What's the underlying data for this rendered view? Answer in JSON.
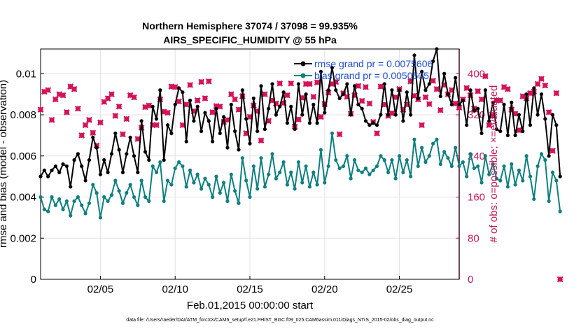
{
  "chart_data": {
    "type": "line",
    "title": "Northern Hemisphere 37074 / 37098 = 99.935%",
    "subtitle": "AIRS_SPECIFIC_HUMIDITY @ 55 hPa",
    "xlabel": "Feb.01,2015 00:00:00 start",
    "ylabel_left": "rmse and bias (model - observation)",
    "ylabel_right": "# of obs: o=possible; ×=evaluated",
    "xlim": [
      1,
      29
    ],
    "ylim_left": [
      0,
      0.0112
    ],
    "ylim_right": [
      0,
      448
    ],
    "x_ticks": [
      5,
      10,
      15,
      20,
      25
    ],
    "x_tick_labels": [
      "02/05",
      "02/10",
      "02/15",
      "02/20",
      "02/25"
    ],
    "y_left_ticks": [
      0,
      0.002,
      0.004,
      0.006,
      0.008,
      0.01
    ],
    "y_left_tick_labels": [
      "0",
      "0.002",
      "0.004",
      "0.006",
      "0.008",
      "0.01"
    ],
    "y_right_ticks": [
      0,
      80,
      160,
      240,
      320,
      400
    ],
    "y_right_tick_labels": [
      "0",
      "80",
      "160",
      "240",
      "320",
      "400"
    ],
    "grid": true,
    "legend_position": "top-right",
    "footer": "data file: /Users/raeder/DAI/ATM_forcXX/CAM6_setup/f.e21.FHIST_BGC.f09_025.CAM6assim.011/Diags_NTrS_2015-02/obs_diag_output.nc",
    "colors": {
      "rmse": "#000000",
      "bias": "#0f7f7f",
      "obs": "#d4145a",
      "right_axis": "#c2185b",
      "legend_text": "#1f4fcc"
    },
    "x_start": 1.0,
    "x_step": 0.25,
    "series": [
      {
        "name": "rmse grand pr = 0.0075606",
        "axis": "left",
        "color": "#000000",
        "values": [
          0.005,
          0.0053,
          0.005,
          0.0053,
          0.0055,
          0.0052,
          0.0056,
          0.0055,
          0.0045,
          0.0058,
          0.0061,
          0.0055,
          0.0048,
          0.0058,
          0.0069,
          0.0064,
          0.0051,
          0.0058,
          0.0052,
          0.0061,
          0.0071,
          0.0063,
          0.0052,
          0.0061,
          0.0069,
          0.006,
          0.0052,
          0.0077,
          0.0062,
          0.0058,
          0.0084,
          0.0078,
          0.0092,
          0.0058,
          0.0075,
          0.0071,
          0.0085,
          0.0093,
          0.0091,
          0.0067,
          0.0087,
          0.0077,
          0.0084,
          0.0072,
          0.0081,
          0.0077,
          0.0067,
          0.0083,
          0.0071,
          0.0079,
          0.0064,
          0.0085,
          0.0072,
          0.0063,
          0.0092,
          0.0078,
          0.0066,
          0.0088,
          0.0072,
          0.0094,
          0.0073,
          0.0083,
          0.0095,
          0.008,
          0.0084,
          0.0091,
          0.0076,
          0.0084,
          0.0073,
          0.0095,
          0.008,
          0.009,
          0.0076,
          0.0085,
          0.0076,
          0.0101,
          0.0081,
          0.0092,
          0.0103,
          0.0092,
          0.0088,
          0.009,
          0.0095,
          0.008,
          0.0094,
          0.0085,
          0.0083,
          0.0077,
          0.0075,
          0.0076,
          0.0075,
          0.008,
          0.0095,
          0.008,
          0.0092,
          0.008,
          0.0092,
          0.0077,
          0.0091,
          0.008,
          0.0109,
          0.0088,
          0.0101,
          0.0092,
          0.0095,
          0.0106,
          0.0112,
          0.0089,
          0.01,
          0.009,
          0.0085,
          0.0098,
          0.0085,
          0.0087,
          0.0075,
          0.0092,
          0.0082,
          0.0083,
          0.0071,
          0.0092,
          0.0077,
          0.0086,
          0.0073,
          0.0072,
          0.0085,
          0.007,
          0.0086,
          0.007,
          0.008,
          0.0072,
          0.009,
          0.0075,
          0.0093,
          0.008,
          0.009,
          0.0078,
          0.006,
          0.008,
          0.0075,
          0.005
        ]
      },
      {
        "name": "bias grand pr = 0.0050505",
        "axis": "left",
        "color": "#0f7f7f",
        "values": [
          0.004,
          0.0034,
          0.0033,
          0.004,
          0.0036,
          0.0039,
          0.0034,
          0.0038,
          0.0031,
          0.0038,
          0.004,
          0.0036,
          0.0032,
          0.0037,
          0.0046,
          0.0042,
          0.003,
          0.004,
          0.0038,
          0.0041,
          0.0048,
          0.0043,
          0.0037,
          0.0042,
          0.0046,
          0.004,
          0.0036,
          0.0048,
          0.004,
          0.0038,
          0.0055,
          0.0052,
          0.0057,
          0.0038,
          0.0048,
          0.0046,
          0.0054,
          0.0057,
          0.0055,
          0.0045,
          0.0053,
          0.0047,
          0.0051,
          0.0044,
          0.0049,
          0.0046,
          0.004,
          0.005,
          0.0042,
          0.0047,
          0.0038,
          0.0051,
          0.0043,
          0.0037,
          0.0059,
          0.0048,
          0.004,
          0.0055,
          0.0044,
          0.0059,
          0.0045,
          0.0051,
          0.0061,
          0.0049,
          0.0052,
          0.0057,
          0.0046,
          0.0052,
          0.0044,
          0.0057,
          0.0047,
          0.0055,
          0.0045,
          0.0052,
          0.0046,
          0.0063,
          0.0047,
          0.0055,
          0.0071,
          0.0058,
          0.0054,
          0.0055,
          0.006,
          0.0049,
          0.0058,
          0.0053,
          0.0052,
          0.0054,
          0.0051,
          0.0053,
          0.0055,
          0.006,
          0.0058,
          0.0052,
          0.0058,
          0.0049,
          0.006,
          0.0052,
          0.0058,
          0.005,
          0.0068,
          0.0055,
          0.0064,
          0.0057,
          0.006,
          0.0066,
          0.0068,
          0.0056,
          0.0062,
          0.0059,
          0.0055,
          0.0064,
          0.0055,
          0.0057,
          0.005,
          0.0061,
          0.0054,
          0.0055,
          0.0047,
          0.006,
          0.0051,
          0.0056,
          0.0049,
          0.0048,
          0.0055,
          0.0045,
          0.0056,
          0.0046,
          0.0053,
          0.0048,
          0.006,
          0.005,
          0.0039,
          0.0055,
          0.0061,
          0.0058,
          0.0038,
          0.0052,
          0.0048,
          0.0033
        ]
      },
      {
        "name": "obs possible",
        "axis": "right",
        "color": "#d4145a",
        "values": [
          330,
          365,
          368,
          310,
          350,
          360,
          358,
          325,
          375,
          370,
          332,
          280,
          300,
          310,
          285,
          260,
          305,
          345,
          352,
          360,
          318,
          336,
          282,
          312,
          358,
          354,
          273,
          295,
          335,
          338,
          300,
          300,
          350,
          326,
          324,
          375,
          374,
          346,
          300,
          340,
          378,
          327,
          348,
          384,
          352,
          385,
          325,
          337,
          336,
          306,
          310,
          360,
          350,
          330,
          356,
          284,
          316,
          338,
          327,
          270,
          360,
          308,
          348,
          342,
          381,
          343,
          358,
          381,
          297,
          311,
          353,
          380,
          380,
          355,
          383,
          316,
          341,
          363,
          380,
          384,
          282,
          362,
          355,
          322,
          358,
          376,
          347,
          374,
          342,
          306,
          284,
          375,
          340,
          318,
          323,
          354,
          370,
          330,
          340,
          385,
          357,
          350,
          300,
          354,
          341,
          386,
          370,
          329,
          378,
          360,
          368,
          342,
          334,
          350,
          372,
          358,
          332,
          366,
          350,
          395,
          300,
          318,
          348,
          348,
          374,
          370,
          330,
          322,
          290,
          356,
          352,
          362,
          365,
          380,
          390,
          377,
          325,
          250,
          362,
          0
        ]
      },
      {
        "name": "obs evaluated",
        "axis": "right",
        "color": "#d4145a",
        "values": [
          330,
          365,
          368,
          310,
          350,
          360,
          358,
          325,
          375,
          370,
          332,
          280,
          300,
          310,
          285,
          260,
          305,
          345,
          352,
          360,
          318,
          336,
          282,
          312,
          358,
          354,
          273,
          295,
          335,
          338,
          300,
          300,
          350,
          326,
          324,
          375,
          374,
          346,
          300,
          340,
          378,
          327,
          348,
          384,
          352,
          385,
          325,
          337,
          336,
          306,
          310,
          360,
          350,
          330,
          356,
          284,
          316,
          338,
          327,
          270,
          360,
          308,
          348,
          342,
          381,
          343,
          358,
          381,
          297,
          311,
          353,
          380,
          380,
          355,
          383,
          316,
          341,
          363,
          380,
          384,
          282,
          362,
          355,
          322,
          358,
          376,
          347,
          374,
          342,
          306,
          284,
          375,
          340,
          318,
          323,
          354,
          370,
          330,
          340,
          385,
          357,
          350,
          300,
          354,
          341,
          386,
          370,
          329,
          378,
          360,
          368,
          342,
          334,
          350,
          372,
          358,
          332,
          366,
          350,
          395,
          300,
          318,
          348,
          348,
          374,
          370,
          330,
          322,
          290,
          356,
          352,
          362,
          365,
          380,
          390,
          377,
          325,
          250,
          362,
          0
        ]
      }
    ]
  }
}
